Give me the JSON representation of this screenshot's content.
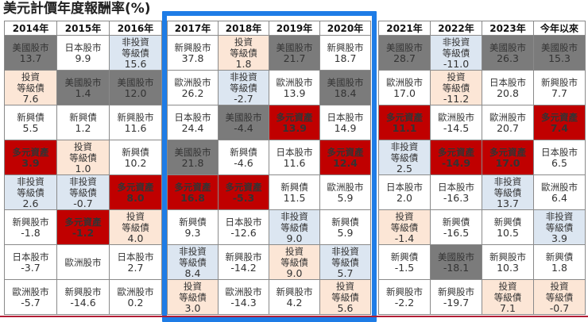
{
  "title": "美元計價年度報酬率(%)",
  "colors": {
    "us_equity": "#7b7b7b",
    "multi_asset": "#c00000",
    "high_yield": "#dce6f1",
    "investment_grade": "#fce6d6",
    "highlight_border": "#1e7ce6"
  },
  "groups": [
    {
      "columns": [
        {
          "year": "2014年",
          "cells": [
            {
              "name": "美國股市",
              "value": "13.7",
              "cat": "us"
            },
            {
              "name": "投資\n等級債",
              "value": "7.6",
              "cat": "ig"
            },
            {
              "name": "新興債",
              "value": "5.5",
              "cat": "plain"
            },
            {
              "name": "多元資產",
              "value": "3.9",
              "cat": "multi"
            },
            {
              "name": "非投資\n等級債",
              "value": "2.6",
              "cat": "hy"
            },
            {
              "name": "新興股市",
              "value": "-1.8",
              "cat": "plain"
            },
            {
              "name": "日本股市",
              "value": "-3.7",
              "cat": "plain"
            },
            {
              "name": "歐洲股市",
              "value": "-5.7",
              "cat": "plain"
            }
          ]
        },
        {
          "year": "2015年",
          "cells": [
            {
              "name": "日本股市",
              "value": "9.9",
              "cat": "plain"
            },
            {
              "name": "美國股市",
              "value": "1.4",
              "cat": "us"
            },
            {
              "name": "新興債",
              "value": "1.2",
              "cat": "plain"
            },
            {
              "name": "投資\n等級債",
              "value": "1.0",
              "cat": "ig"
            },
            {
              "name": "非投資\n等級債",
              "value": "-0.7",
              "cat": "hy"
            },
            {
              "name": "多元資產",
              "value": "-1.2",
              "cat": "multi"
            },
            {
              "name": "歐洲股市",
              "value": "",
              "cat": "plain"
            },
            {
              "name": "新興股市",
              "value": "-14.6",
              "cat": "plain"
            }
          ]
        },
        {
          "year": "2016年",
          "cells": [
            {
              "name": "非投資\n等級債",
              "value": "15.6",
              "cat": "hy"
            },
            {
              "name": "美國股市",
              "value": "12.0",
              "cat": "us"
            },
            {
              "name": "新興股市",
              "value": "11.6",
              "cat": "plain"
            },
            {
              "name": "新興債",
              "value": "10.2",
              "cat": "plain"
            },
            {
              "name": "多元資產",
              "value": "8.0",
              "cat": "multi"
            },
            {
              "name": "投資\n等級債",
              "value": "4.0",
              "cat": "ig"
            },
            {
              "name": "日本股市",
              "value": "2.7",
              "cat": "plain"
            },
            {
              "name": "歐洲股市",
              "value": "0.2",
              "cat": "plain"
            }
          ]
        }
      ]
    },
    {
      "highlighted": true,
      "columns": [
        {
          "year": "2017年",
          "cells": [
            {
              "name": "新興股市",
              "value": "37.8",
              "cat": "plain"
            },
            {
              "name": "歐洲股市",
              "value": "26.2",
              "cat": "plain"
            },
            {
              "name": "日本股市",
              "value": "24.4",
              "cat": "plain"
            },
            {
              "name": "美國股市",
              "value": "21.8",
              "cat": "us"
            },
            {
              "name": "多元資產",
              "value": "16.8",
              "cat": "multi"
            },
            {
              "name": "新興債",
              "value": "9.3",
              "cat": "plain"
            },
            {
              "name": "非投資\n等級債",
              "value": "8.4",
              "cat": "hy"
            },
            {
              "name": "投資\n等級債",
              "value": "3.0",
              "cat": "ig"
            }
          ]
        },
        {
          "year": "2018年",
          "cells": [
            {
              "name": "投資\n等級債",
              "value": "1.8",
              "cat": "ig"
            },
            {
              "name": "非投資\n等級債",
              "value": "-2.7",
              "cat": "hy"
            },
            {
              "name": "美國股市",
              "value": "-4.4",
              "cat": "us"
            },
            {
              "name": "新興債",
              "value": "-4.6",
              "cat": "plain"
            },
            {
              "name": "多元資產",
              "value": "-5.3",
              "cat": "multi"
            },
            {
              "name": "日本股市",
              "value": "-12.6",
              "cat": "plain"
            },
            {
              "name": "新興股市",
              "value": "-14.2",
              "cat": "plain"
            },
            {
              "name": "歐洲股市",
              "value": "-14.3",
              "cat": "plain"
            }
          ]
        },
        {
          "year": "2019年",
          "cells": [
            {
              "name": "美國股市",
              "value": "21.7",
              "cat": "us"
            },
            {
              "name": "歐洲股市",
              "value": "13.9",
              "cat": "plain"
            },
            {
              "name": "多元資產",
              "value": "13.9",
              "cat": "multi"
            },
            {
              "name": "日本股市",
              "value": "11.6",
              "cat": "plain"
            },
            {
              "name": "新興債",
              "value": "11.5",
              "cat": "plain"
            },
            {
              "name": "非投資\n等級債",
              "value": "9.0",
              "cat": "hy"
            },
            {
              "name": "投資\n等級債",
              "value": "9.0",
              "cat": "ig"
            },
            {
              "name": "新興股市",
              "value": "4.2",
              "cat": "plain"
            }
          ]
        },
        {
          "year": "2020年",
          "cells": [
            {
              "name": "新興股市",
              "value": "18.7",
              "cat": "plain"
            },
            {
              "name": "美國股市",
              "value": "18.4",
              "cat": "us"
            },
            {
              "name": "日本股市",
              "value": "14.9",
              "cat": "plain"
            },
            {
              "name": "多元資產",
              "value": "12.4",
              "cat": "multi"
            },
            {
              "name": "歐洲股市",
              "value": "5.9",
              "cat": "plain"
            },
            {
              "name": "新興債",
              "value": "5.9",
              "cat": "plain"
            },
            {
              "name": "非投資\n等級債",
              "value": "5.7",
              "cat": "hy"
            },
            {
              "name": "投資\n等級債",
              "value": "5.6",
              "cat": "ig"
            }
          ]
        }
      ]
    },
    {
      "columns": [
        {
          "year": "2021年",
          "cells": [
            {
              "name": "美國股市",
              "value": "28.7",
              "cat": "us"
            },
            {
              "name": "歐洲股市",
              "value": "17.0",
              "cat": "plain"
            },
            {
              "name": "多元資產",
              "value": "11.1",
              "cat": "multi"
            },
            {
              "name": "非投資\n等級債",
              "value": "2.5",
              "cat": "hy"
            },
            {
              "name": "日本股市",
              "value": "2.0",
              "cat": "plain"
            },
            {
              "name": "投資\n等級債",
              "value": "-1.4",
              "cat": "ig"
            },
            {
              "name": "新興債",
              "value": "-1.5",
              "cat": "plain"
            },
            {
              "name": "新興股市",
              "value": "-2.2",
              "cat": "plain"
            }
          ]
        },
        {
          "year": "2022年",
          "cells": [
            {
              "name": "非投資\n等級債",
              "value": "-11.0",
              "cat": "hy"
            },
            {
              "name": "投資\n等級債",
              "value": "-11.2",
              "cat": "ig"
            },
            {
              "name": "歐洲股市",
              "value": "-14.5",
              "cat": "plain"
            },
            {
              "name": "多元資產",
              "value": "-14.9",
              "cat": "multi"
            },
            {
              "name": "日本股市",
              "value": "-16.3",
              "cat": "plain"
            },
            {
              "name": "新興債",
              "value": "-16.5",
              "cat": "plain"
            },
            {
              "name": "美國股市",
              "value": "-18.1",
              "cat": "us"
            },
            {
              "name": "新興股市",
              "value": "-19.7",
              "cat": "plain"
            }
          ]
        },
        {
          "year": "2023年",
          "cells": [
            {
              "name": "美國股市",
              "value": "26.3",
              "cat": "us"
            },
            {
              "name": "日本股市",
              "value": "20.8",
              "cat": "plain"
            },
            {
              "name": "歐洲股市",
              "value": "20.7",
              "cat": "plain"
            },
            {
              "name": "多元資產",
              "value": "17.0",
              "cat": "multi"
            },
            {
              "name": "非投資\n等級債",
              "value": "13.7",
              "cat": "hy"
            },
            {
              "name": "新興債",
              "value": "10.5",
              "cat": "plain"
            },
            {
              "name": "新興股市",
              "value": "10.3",
              "cat": "plain"
            },
            {
              "name": "投資\n等級債",
              "value": "7.1",
              "cat": "ig"
            }
          ]
        },
        {
          "year": "今年以來",
          "cells": [
            {
              "name": "美國股市",
              "value": "15.3",
              "cat": "us"
            },
            {
              "name": "新興股市",
              "value": "7.7",
              "cat": "plain"
            },
            {
              "name": "多元資產",
              "value": "7.4",
              "cat": "multi"
            },
            {
              "name": "日本股市",
              "value": "6.5",
              "cat": "plain"
            },
            {
              "name": "歐洲股市",
              "value": "6.4",
              "cat": "plain"
            },
            {
              "name": "非投資\n等級債",
              "value": "3.9",
              "cat": "hy"
            },
            {
              "name": "新興債",
              "value": "1.8",
              "cat": "plain"
            },
            {
              "name": "投資\n等級債",
              "value": "-0.7",
              "cat": "ig"
            }
          ]
        }
      ]
    }
  ],
  "chart_data": {
    "type": "table",
    "title": "美元計價年度報酬率(%)",
    "categories": [
      "2014年",
      "2015年",
      "2016年",
      "2017年",
      "2018年",
      "2019年",
      "2020年",
      "2021年",
      "2022年",
      "2023年",
      "今年以來"
    ],
    "highlighted_columns": [
      "2017年",
      "2018年",
      "2019年",
      "2020年"
    ],
    "legend": {
      "美國股市": "dark gray",
      "多元資產": "red",
      "非投資等級債": "light blue",
      "投資等級債": "light peach",
      "others": "white"
    },
    "ranked_returns": {
      "2014年": [
        [
          "美國股市",
          13.7
        ],
        [
          "投資等級債",
          7.6
        ],
        [
          "新興債",
          5.5
        ],
        [
          "多元資產",
          3.9
        ],
        [
          "非投資等級債",
          2.6
        ],
        [
          "新興股市",
          -1.8
        ],
        [
          "日本股市",
          -3.7
        ],
        [
          "歐洲股市",
          -5.7
        ]
      ],
      "2015年": [
        [
          "日本股市",
          9.9
        ],
        [
          "美國股市",
          1.4
        ],
        [
          "新興債",
          1.2
        ],
        [
          "投資等級債",
          1.0
        ],
        [
          "非投資等級債",
          -0.7
        ],
        [
          "多元資產",
          -1.2
        ],
        [
          "歐洲股市",
          null
        ],
        [
          "新興股市",
          -14.6
        ]
      ],
      "2016年": [
        [
          "非投資等級債",
          15.6
        ],
        [
          "美國股市",
          12.0
        ],
        [
          "新興股市",
          11.6
        ],
        [
          "新興債",
          10.2
        ],
        [
          "多元資產",
          8.0
        ],
        [
          "投資等級債",
          4.0
        ],
        [
          "日本股市",
          2.7
        ],
        [
          "歐洲股市",
          0.2
        ]
      ],
      "2017年": [
        [
          "新興股市",
          37.8
        ],
        [
          "歐洲股市",
          26.2
        ],
        [
          "日本股市",
          24.4
        ],
        [
          "美國股市",
          21.8
        ],
        [
          "多元資產",
          16.8
        ],
        [
          "新興債",
          9.3
        ],
        [
          "非投資等級債",
          8.4
        ],
        [
          "投資等級債",
          3.0
        ]
      ],
      "2018年": [
        [
          "投資等級債",
          1.8
        ],
        [
          "非投資等級債",
          -2.7
        ],
        [
          "美國股市",
          -4.4
        ],
        [
          "新興債",
          -4.6
        ],
        [
          "多元資產",
          -5.3
        ],
        [
          "日本股市",
          -12.6
        ],
        [
          "新興股市",
          -14.2
        ],
        [
          "歐洲股市",
          -14.3
        ]
      ],
      "2019年": [
        [
          "美國股市",
          21.7
        ],
        [
          "歐洲股市",
          13.9
        ],
        [
          "多元資產",
          13.9
        ],
        [
          "日本股市",
          11.6
        ],
        [
          "新興債",
          11.5
        ],
        [
          "非投資等級債",
          9.0
        ],
        [
          "投資等級債",
          9.0
        ],
        [
          "新興股市",
          4.2
        ]
      ],
      "2020年": [
        [
          "新興股市",
          18.7
        ],
        [
          "美國股市",
          18.4
        ],
        [
          "日本股市",
          14.9
        ],
        [
          "多元資產",
          12.4
        ],
        [
          "歐洲股市",
          5.9
        ],
        [
          "新興債",
          5.9
        ],
        [
          "非投資等級債",
          5.7
        ],
        [
          "投資等級債",
          5.6
        ]
      ],
      "2021年": [
        [
          "美國股市",
          28.7
        ],
        [
          "歐洲股市",
          17.0
        ],
        [
          "多元資產",
          11.1
        ],
        [
          "非投資等級債",
          2.5
        ],
        [
          "日本股市",
          2.0
        ],
        [
          "投資等級債",
          -1.4
        ],
        [
          "新興債",
          -1.5
        ],
        [
          "新興股市",
          -2.2
        ]
      ],
      "2022年": [
        [
          "非投資等級債",
          -11.0
        ],
        [
          "投資等級債",
          -11.2
        ],
        [
          "歐洲股市",
          -14.5
        ],
        [
          "多元資產",
          -14.9
        ],
        [
          "日本股市",
          -16.3
        ],
        [
          "新興債",
          -16.5
        ],
        [
          "美國股市",
          -18.1
        ],
        [
          "新興股市",
          -19.7
        ]
      ],
      "2023年": [
        [
          "美國股市",
          26.3
        ],
        [
          "日本股市",
          20.8
        ],
        [
          "歐洲股市",
          20.7
        ],
        [
          "多元資產",
          17.0
        ],
        [
          "非投資等級債",
          13.7
        ],
        [
          "新興債",
          10.5
        ],
        [
          "新興股市",
          10.3
        ],
        [
          "投資等級債",
          7.1
        ]
      ],
      "今年以來": [
        [
          "美國股市",
          15.3
        ],
        [
          "新興股市",
          7.7
        ],
        [
          "多元資產",
          7.4
        ],
        [
          "日本股市",
          6.5
        ],
        [
          "歐洲股市",
          6.4
        ],
        [
          "非投資等級債",
          3.9
        ],
        [
          "新興債",
          1.8
        ],
        [
          "投資等級債",
          -0.7
        ]
      ]
    }
  }
}
